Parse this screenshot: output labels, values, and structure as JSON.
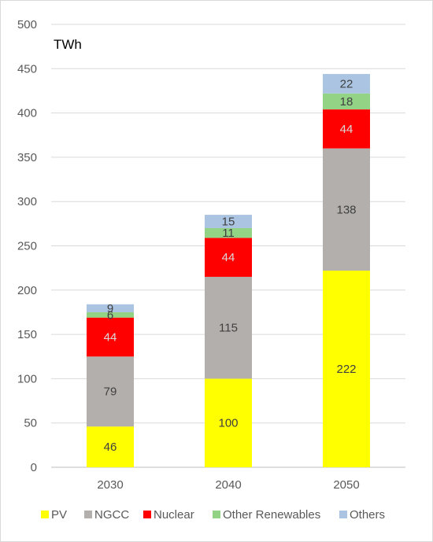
{
  "chart_data": {
    "type": "bar",
    "stacked": true,
    "unit_label": "TWh",
    "categories": [
      "2030",
      "2040",
      "2050"
    ],
    "series": [
      {
        "name": "PV",
        "values": [
          46,
          100,
          222
        ],
        "color": "#ffff00",
        "label_color": "#404040"
      },
      {
        "name": "NGCC",
        "values": [
          79,
          115,
          138
        ],
        "color": "#b3afad",
        "label_color": "#404040"
      },
      {
        "name": "Nuclear",
        "values": [
          44,
          44,
          44
        ],
        "color": "#ff0000",
        "label_color": "#d9d9d9"
      },
      {
        "name": "Other Renewables",
        "values": [
          6,
          11,
          18
        ],
        "color": "#92d386",
        "label_color": "#404040"
      },
      {
        "name": "Others",
        "values": [
          9,
          15,
          22
        ],
        "color": "#aac4e2",
        "label_color": "#404040"
      }
    ],
    "ylim": [
      0,
      500
    ],
    "yticks": [
      0,
      50,
      100,
      150,
      200,
      250,
      300,
      350,
      400,
      450,
      500
    ],
    "grid": true,
    "legend_position": "bottom"
  }
}
